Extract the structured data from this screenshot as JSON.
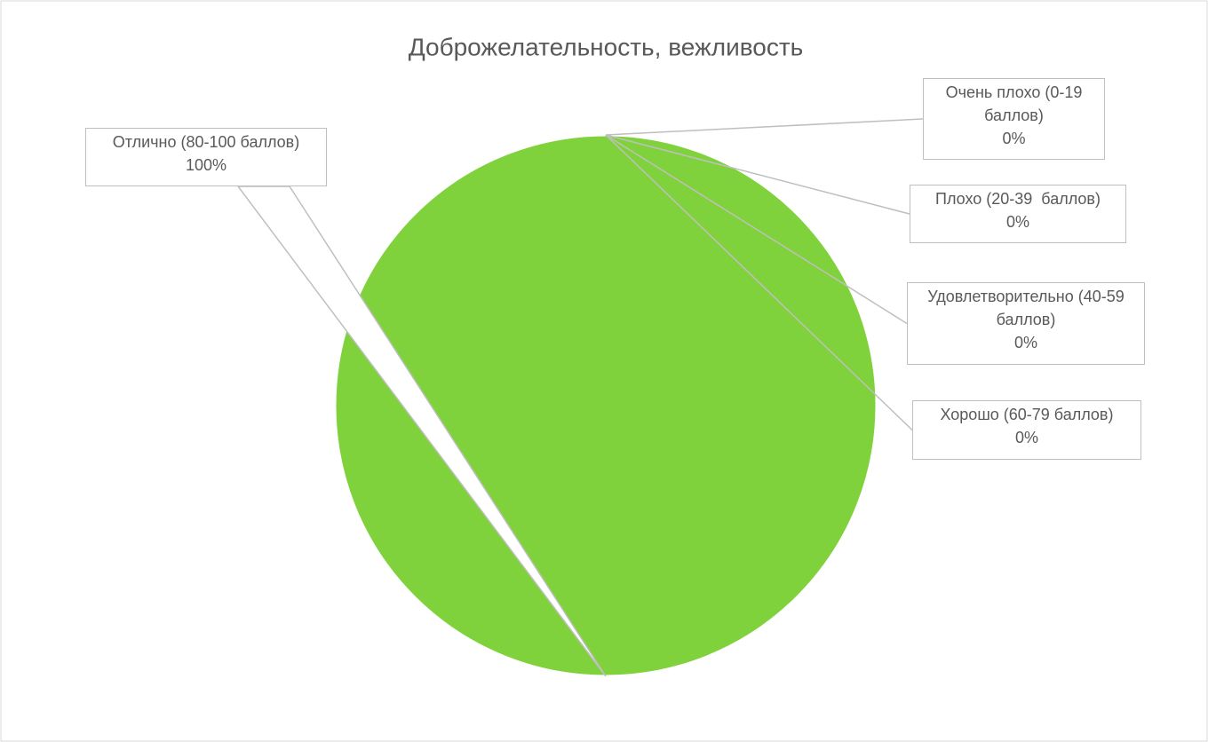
{
  "chart_data": {
    "type": "pie",
    "title": "Доброжелательность, вежливость",
    "categories": [
      "Очень плохо (0-19 баллов)",
      "Плохо (20-39  баллов)",
      "Удовлетворительно (40-59 баллов)",
      "Хорошо (60-79 баллов)",
      "Отлично (80-100 баллов)"
    ],
    "values": [
      0,
      0,
      0,
      0,
      100
    ],
    "value_labels": [
      "0%",
      "0%",
      "0%",
      "0%",
      "100%"
    ],
    "color": "#80d23c"
  }
}
